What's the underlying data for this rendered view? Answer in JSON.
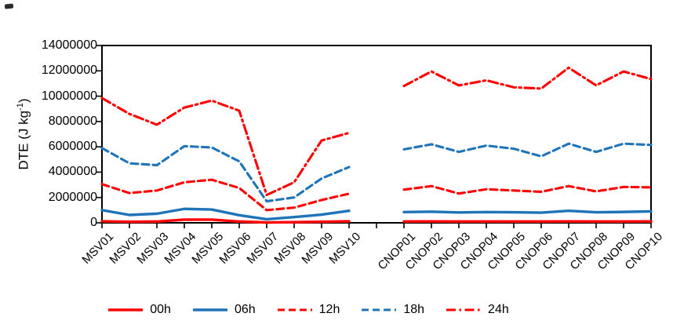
{
  "figure": {
    "background": "#ffffff",
    "text_color": "#000000",
    "axis_color": "#000000"
  },
  "y_axis": {
    "title_prefix": "DTE (J kg",
    "title_sup": "-1",
    "title_suffix": ")"
  },
  "chart_data": {
    "type": "line",
    "title": "",
    "xlabel": "",
    "ylabel": "DTE (J kg-1)",
    "ylim": [
      0,
      14000000
    ],
    "ytick_step": 2000000,
    "ytick_labels": [
      "0",
      "2000000",
      "4000000",
      "6000000",
      "8000000",
      "10000000",
      "12000000",
      "14000000"
    ],
    "grid": false,
    "legend_position": "bottom",
    "x_axis_note": "two category groups separated by one blank category; ticks at every category",
    "category_groups": [
      {
        "name": "MSV",
        "categories": [
          "MSV01",
          "MSV02",
          "MSV03",
          "MSV04",
          "MSV05",
          "MSV06",
          "MSV07",
          "MSV08",
          "MSV09",
          "MSV10"
        ]
      },
      {
        "name": "CNOP",
        "categories": [
          "CNOP01",
          "CNOP02",
          "CNOP03",
          "CNOP04",
          "CNOP05",
          "CNOP06",
          "CNOP07",
          "CNOP08",
          "CNOP09",
          "CNOP10"
        ]
      }
    ],
    "gap_categories_between_groups": 1,
    "series": [
      {
        "name": "00h",
        "color": "#FF0000",
        "line_style": "solid",
        "values_msv": [
          120000,
          80000,
          100000,
          250000,
          250000,
          100000,
          30000,
          50000,
          80000,
          120000
        ],
        "values_cnop": [
          100000,
          110000,
          100000,
          100000,
          100000,
          100000,
          110000,
          100000,
          100000,
          110000
        ]
      },
      {
        "name": "06h",
        "color": "#1F74B8",
        "line_style": "solid",
        "values_msv": [
          1000000,
          620000,
          720000,
          1100000,
          1050000,
          600000,
          280000,
          450000,
          650000,
          950000
        ],
        "values_cnop": [
          850000,
          880000,
          820000,
          850000,
          830000,
          800000,
          950000,
          830000,
          860000,
          900000
        ]
      },
      {
        "name": "12h",
        "color": "#FF0000",
        "line_style": "dashed",
        "values_msv": [
          3050000,
          2350000,
          2550000,
          3200000,
          3400000,
          2750000,
          1000000,
          1200000,
          1800000,
          2300000
        ],
        "values_cnop": [
          2620000,
          2900000,
          2310000,
          2650000,
          2550000,
          2450000,
          2900000,
          2480000,
          2830000,
          2800000
        ]
      },
      {
        "name": "18h",
        "color": "#1F74B8",
        "line_style": "dashed",
        "values_msv": [
          5900000,
          4700000,
          4550000,
          6050000,
          5950000,
          4850000,
          1700000,
          2000000,
          3500000,
          4400000
        ],
        "values_cnop": [
          5800000,
          6200000,
          5600000,
          6100000,
          5850000,
          5250000,
          6250000,
          5600000,
          6250000,
          6150000
        ]
      },
      {
        "name": "24h",
        "color": "#FF0000",
        "line_style": "dashdot",
        "values_msv": [
          9850000,
          8600000,
          7750000,
          9100000,
          9650000,
          8850000,
          2200000,
          3200000,
          6500000,
          7100000
        ],
        "values_cnop": [
          10800000,
          11950000,
          10850000,
          11250000,
          10700000,
          10600000,
          12250000,
          10850000,
          11950000,
          11350000
        ]
      }
    ]
  }
}
